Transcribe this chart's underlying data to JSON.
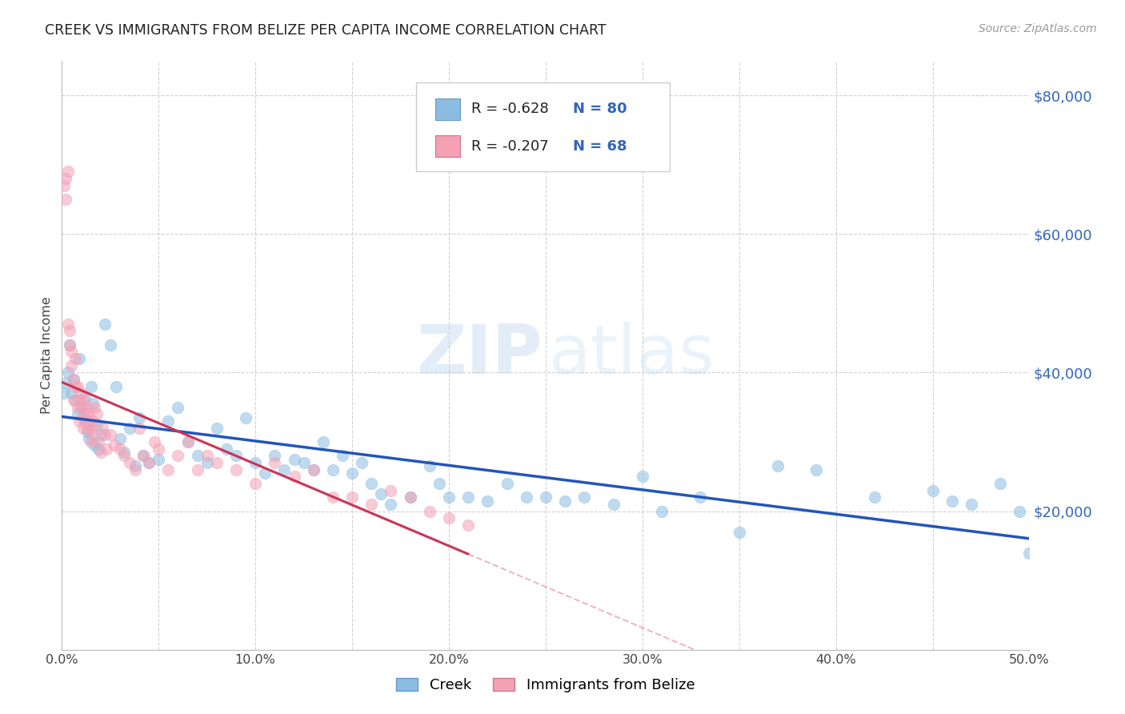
{
  "title": "CREEK VS IMMIGRANTS FROM BELIZE PER CAPITA INCOME CORRELATION CHART",
  "source_text": "Source: ZipAtlas.com",
  "ylabel": "Per Capita Income",
  "xlim": [
    0.0,
    0.5
  ],
  "ylim": [
    0,
    85000
  ],
  "xticks": [
    0.0,
    0.05,
    0.1,
    0.15,
    0.2,
    0.25,
    0.3,
    0.35,
    0.4,
    0.45,
    0.5
  ],
  "xtick_labels": [
    "0.0%",
    "",
    "10.0%",
    "",
    "20.0%",
    "",
    "30.0%",
    "",
    "40.0%",
    "",
    "50.0%"
  ],
  "yticks_right": [
    0,
    20000,
    40000,
    60000,
    80000
  ],
  "ytick_right_labels": [
    "",
    "$20,000",
    "$40,000",
    "$60,000",
    "$80,000"
  ],
  "grid_color": "#cccccc",
  "background_color": "#ffffff",
  "creek_color": "#8bbde0",
  "belize_color": "#f4a0b5",
  "creek_R": -0.628,
  "creek_N": 80,
  "belize_R": -0.207,
  "belize_N": 68,
  "creek_line_color": "#2255bb",
  "belize_line_color": "#cc3355",
  "legend_label_creek": "Creek",
  "legend_label_belize": "Immigrants from Belize",
  "creek_x": [
    0.001,
    0.002,
    0.003,
    0.004,
    0.005,
    0.006,
    0.007,
    0.008,
    0.009,
    0.01,
    0.011,
    0.012,
    0.013,
    0.014,
    0.015,
    0.016,
    0.017,
    0.018,
    0.019,
    0.02,
    0.022,
    0.025,
    0.028,
    0.03,
    0.032,
    0.035,
    0.038,
    0.04,
    0.042,
    0.045,
    0.05,
    0.055,
    0.06,
    0.065,
    0.07,
    0.075,
    0.08,
    0.085,
    0.09,
    0.095,
    0.1,
    0.105,
    0.11,
    0.115,
    0.12,
    0.125,
    0.13,
    0.135,
    0.14,
    0.145,
    0.15,
    0.155,
    0.16,
    0.165,
    0.17,
    0.18,
    0.19,
    0.195,
    0.2,
    0.21,
    0.22,
    0.23,
    0.24,
    0.25,
    0.26,
    0.27,
    0.285,
    0.3,
    0.31,
    0.33,
    0.35,
    0.37,
    0.39,
    0.42,
    0.45,
    0.46,
    0.47,
    0.485,
    0.495,
    0.5
  ],
  "creek_y": [
    37000,
    38500,
    40000,
    44000,
    37000,
    39000,
    36000,
    34000,
    42000,
    35000,
    33500,
    36500,
    31500,
    30500,
    38000,
    35500,
    29500,
    32500,
    29000,
    31000,
    47000,
    44000,
    38000,
    30500,
    28500,
    32000,
    26500,
    33500,
    28000,
    27000,
    27500,
    33000,
    35000,
    30000,
    28000,
    27000,
    32000,
    29000,
    28000,
    33500,
    27000,
    25500,
    28000,
    26000,
    27500,
    27000,
    26000,
    30000,
    26000,
    28000,
    25500,
    27000,
    24000,
    22500,
    21000,
    22000,
    26500,
    24000,
    22000,
    22000,
    21500,
    24000,
    22000,
    22000,
    21500,
    22000,
    21000,
    25000,
    20000,
    22000,
    17000,
    26500,
    26000,
    22000,
    23000,
    21500,
    21000,
    24000,
    20000,
    14000
  ],
  "belize_x": [
    0.001,
    0.002,
    0.002,
    0.003,
    0.003,
    0.004,
    0.004,
    0.005,
    0.005,
    0.006,
    0.006,
    0.007,
    0.007,
    0.008,
    0.008,
    0.009,
    0.009,
    0.01,
    0.01,
    0.011,
    0.011,
    0.012,
    0.012,
    0.013,
    0.013,
    0.014,
    0.014,
    0.015,
    0.015,
    0.016,
    0.016,
    0.017,
    0.018,
    0.019,
    0.02,
    0.021,
    0.022,
    0.023,
    0.025,
    0.027,
    0.03,
    0.032,
    0.035,
    0.038,
    0.04,
    0.042,
    0.045,
    0.048,
    0.05,
    0.055,
    0.06,
    0.065,
    0.07,
    0.075,
    0.08,
    0.09,
    0.1,
    0.11,
    0.12,
    0.13,
    0.14,
    0.15,
    0.16,
    0.17,
    0.18,
    0.19,
    0.2,
    0.21
  ],
  "belize_y": [
    67000,
    68000,
    65000,
    47000,
    69000,
    44000,
    46000,
    41000,
    43000,
    36000,
    39000,
    42000,
    38000,
    35000,
    38000,
    33000,
    36000,
    35000,
    37000,
    32000,
    36000,
    34000,
    33000,
    35000,
    32000,
    34000,
    33000,
    30000,
    32000,
    33000,
    31000,
    35000,
    34000,
    30000,
    28500,
    32000,
    31000,
    29000,
    31000,
    29500,
    29000,
    28000,
    27000,
    26000,
    32000,
    28000,
    27000,
    30000,
    29000,
    26000,
    28000,
    30000,
    26000,
    28000,
    27000,
    26000,
    24000,
    27000,
    25000,
    26000,
    22000,
    22000,
    21000,
    23000,
    22000,
    20000,
    19000,
    18000
  ]
}
